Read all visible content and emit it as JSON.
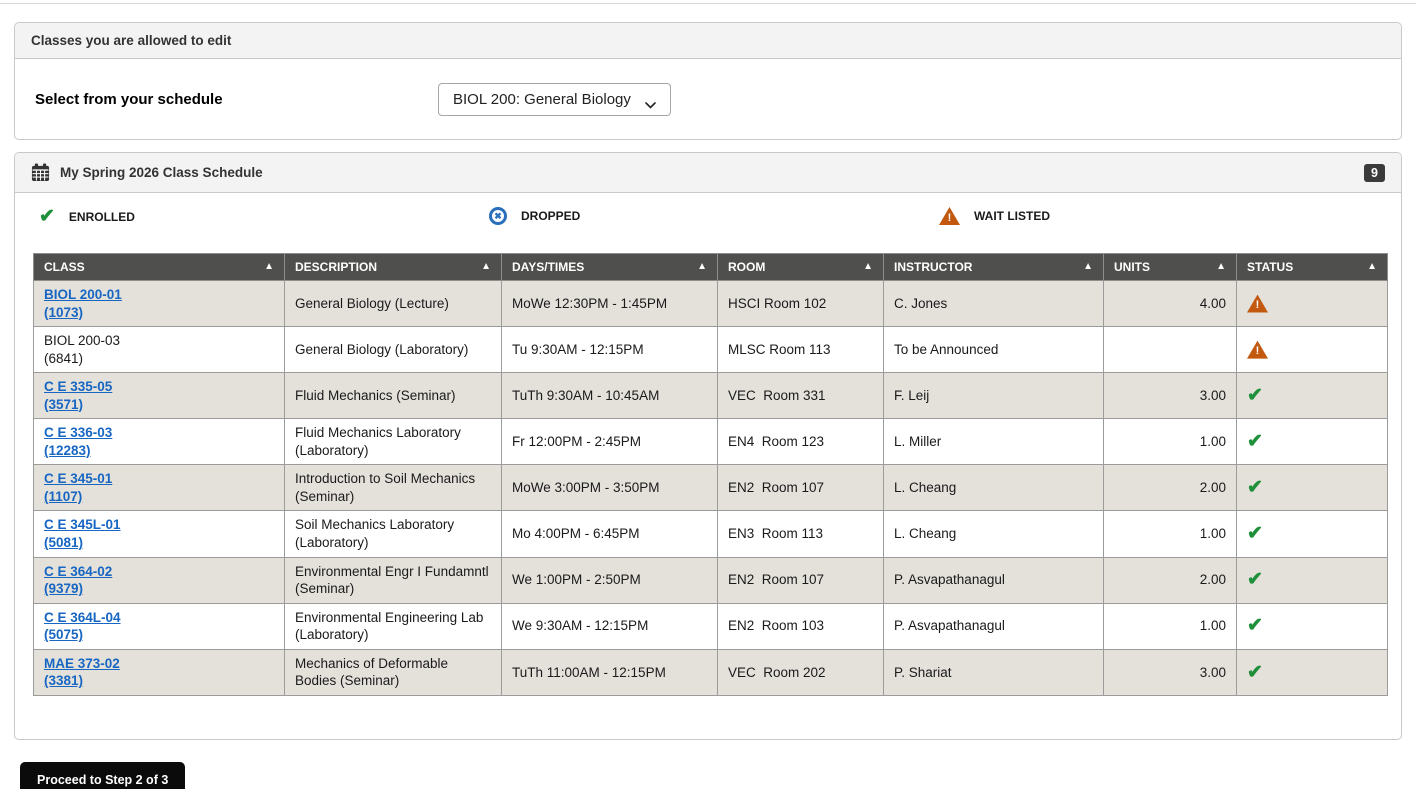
{
  "edit_panel": {
    "title": "Classes you are allowed to edit",
    "select_label": "Select from your schedule",
    "dropdown_value": "BIOL 200: General Biology"
  },
  "schedule_panel": {
    "title": "My Spring 2026 Class Schedule",
    "badge_count": "9",
    "legend": [
      {
        "status": "enrolled",
        "label": "ENROLLED"
      },
      {
        "status": "dropped",
        "label": "DROPPED"
      },
      {
        "status": "waitlisted",
        "label": "WAIT LISTED"
      }
    ],
    "table": {
      "columns": [
        "CLASS",
        "DESCRIPTION",
        "DAYS/TIMES",
        "ROOM",
        "INSTRUCTOR",
        "UNITS",
        "STATUS"
      ],
      "rows": [
        {
          "class_line1": "BIOL 200-01",
          "class_line2": "(1073)",
          "is_link": true,
          "description": "General Biology (Lecture)",
          "days_times": "MoWe 12:30PM - 1:45PM",
          "room": "HSCI Room 102",
          "instructor": "C. Jones",
          "units": "4.00",
          "status": "waitlisted"
        },
        {
          "class_line1": "BIOL 200-03",
          "class_line2": "(6841)",
          "is_link": false,
          "description": "General Biology (Laboratory)",
          "days_times": "Tu 9:30AM - 12:15PM",
          "room": "MLSC Room 113",
          "instructor": "To be Announced",
          "units": "",
          "status": "waitlisted"
        },
        {
          "class_line1": "C E 335-05",
          "class_line2": "(3571)",
          "is_link": true,
          "description": "Fluid Mechanics (Seminar)",
          "days_times": "TuTh 9:30AM - 10:45AM",
          "room": "VEC  Room 331",
          "instructor": "F. Leij",
          "units": "3.00",
          "status": "enrolled"
        },
        {
          "class_line1": "C E 336-03",
          "class_line2": "(12283)",
          "is_link": true,
          "description": "Fluid Mechanics Laboratory (Laboratory)",
          "days_times": "Fr 12:00PM - 2:45PM",
          "room": "EN4  Room 123",
          "instructor": "L. Miller",
          "units": "1.00",
          "status": "enrolled"
        },
        {
          "class_line1": "C E 345-01",
          "class_line2": "(1107)",
          "is_link": true,
          "description": "Introduction to Soil Mechanics (Seminar)",
          "days_times": "MoWe 3:00PM - 3:50PM",
          "room": "EN2  Room 107",
          "instructor": "L. Cheang",
          "units": "2.00",
          "status": "enrolled"
        },
        {
          "class_line1": "C E 345L-01",
          "class_line2": "(5081)",
          "is_link": true,
          "description": "Soil Mechanics Laboratory (Laboratory)",
          "days_times": "Mo 4:00PM - 6:45PM",
          "room": "EN3  Room 113",
          "instructor": "L. Cheang",
          "units": "1.00",
          "status": "enrolled"
        },
        {
          "class_line1": "C E 364-02",
          "class_line2": "(9379)",
          "is_link": true,
          "description": "Environmental Engr I Fundamntl (Seminar)",
          "days_times": "We 1:00PM - 2:50PM",
          "room": "EN2  Room 107",
          "instructor": "P. Asvapathanagul",
          "units": "2.00",
          "status": "enrolled"
        },
        {
          "class_line1": "C E 364L-04",
          "class_line2": "(5075)",
          "is_link": true,
          "description": "Environmental Engineering Lab (Laboratory)",
          "days_times": "We 9:30AM - 12:15PM",
          "room": "EN2  Room 103",
          "instructor": "P. Asvapathanagul",
          "units": "1.00",
          "status": "enrolled"
        },
        {
          "class_line1": "MAE 373-02",
          "class_line2": "(3381)",
          "is_link": true,
          "description": "Mechanics of Deformable Bodies (Seminar)",
          "days_times": "TuTh 11:00AM - 12:15PM",
          "room": "VEC  Room 202",
          "instructor": "P. Shariat",
          "units": "3.00",
          "status": "enrolled"
        }
      ]
    }
  },
  "footer": {
    "proceed_button_label": "Proceed to Step 2 of 3"
  },
  "colors": {
    "table_header_bg": "#4f4f4d",
    "alt_row_bg": "#e4e1db",
    "link_blue": "#1766c2",
    "enrolled_green": "#1f8f3a",
    "dropped_blue": "#2a6fbb",
    "waitlist_orange": "#c2590f"
  }
}
